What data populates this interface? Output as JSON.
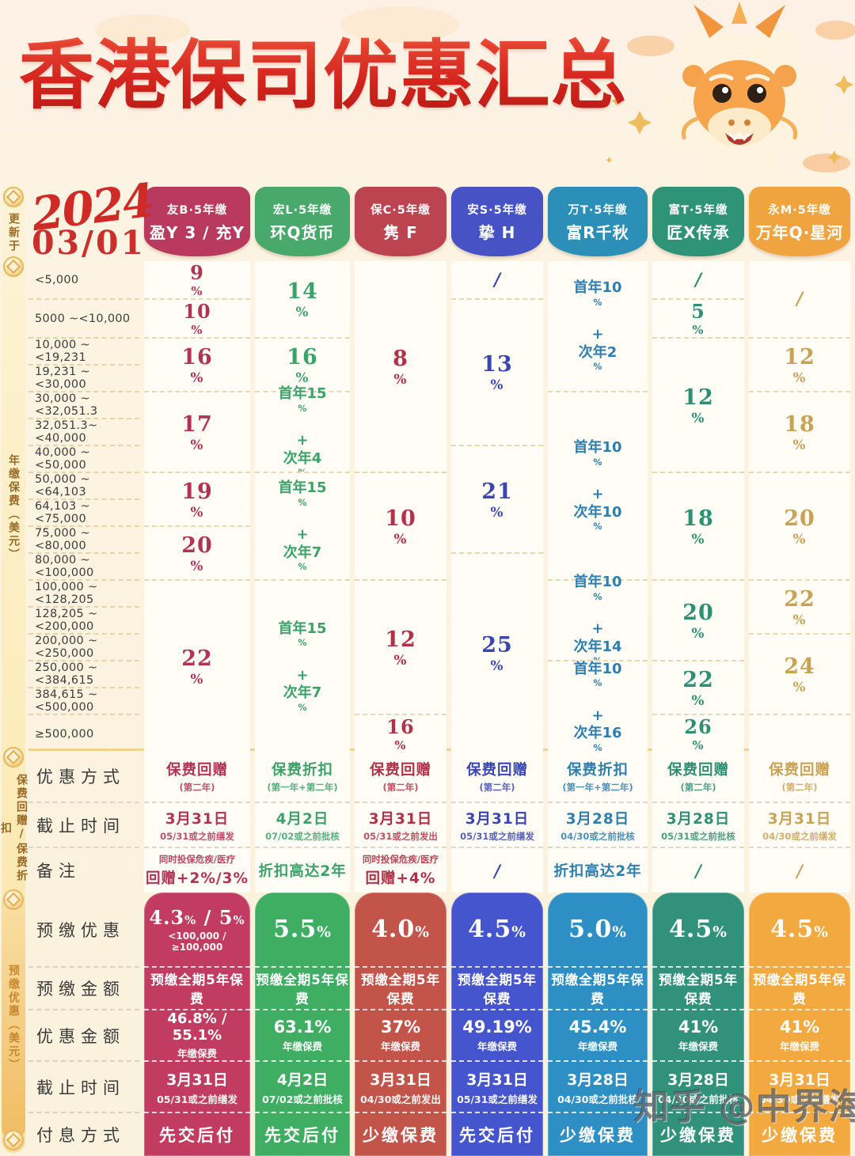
{
  "title": "香港保司优惠汇总",
  "update": {
    "label": "更新于",
    "year": "2024",
    "date": "03/01"
  },
  "watermark": "知乎 @中界海外",
  "sidebar": {
    "update": "更新于",
    "section1": "年缴保费（美元）",
    "section2": "保费回赠/保费折扣",
    "section3": "预缴优惠（美元）"
  },
  "row_labels": {
    "method": "优惠方式",
    "deadline": "截止时间",
    "note": "备注",
    "prepay_rate": "预缴优惠",
    "prepay_amount": "预缴金额",
    "prepay_benefit": "优惠金额",
    "prepay_deadline": "截止时间",
    "prepay_interest": "付息方式"
  },
  "chart_data": {
    "type": "table",
    "title": "香港保司优惠汇总",
    "updated": "2024 03/01",
    "unit_note": "年缴保费（美元）",
    "premium_bands": [
      "<5,000",
      "5000  ~<10,000",
      "10,000  ~<19,231",
      "19,231  ~<30,000",
      "30,000  ~<32,051.3",
      "32,051.3~<40,000",
      "40,000  ~<50,000",
      "50,000  ~<64,103",
      "64,103  ~<75,000",
      "75,000  ~<80,000",
      "80,000  ~<100,000",
      "100,000 ~<128,205",
      "128,205 ~<200,000",
      "200,000 ~<250,000",
      "250,000 ~<384,615",
      "384,615 ~<500,000",
      "≥500,000"
    ],
    "columns": [
      {
        "company": "友B·5年缴",
        "product": "盈Y 3 / 充Y",
        "header_color": "#b93a5e",
        "value_color": "#b23355",
        "card_color": "#c23b60",
        "cells": [
          {
            "span": 1,
            "text": "9%"
          },
          {
            "span": 1,
            "text": "10%"
          },
          {
            "span": 2,
            "text": "16%"
          },
          {
            "span": 3,
            "text": "17%"
          },
          {
            "span": 2,
            "text": "19%"
          },
          {
            "span": 2,
            "text": "20%"
          },
          {
            "span": 6,
            "text": "22%"
          }
        ],
        "method": {
          "main": "保费回赠",
          "sub": "(第二年)"
        },
        "deadline": {
          "main": "3月31日",
          "sub": "05/31或之前缮发"
        },
        "note": {
          "top": "同时投保危疾/医疗",
          "main": "回赠+2%/3%"
        },
        "prepay": {
          "rate": "4.3% / 5%",
          "rate_sub": "<100,000 / ≥100,000",
          "amount": "预缴全期5年保费",
          "benefit": "46.8% / 55.1%",
          "benefit_sub": "年缴保费",
          "deadline": "3月31日",
          "deadline_sub": "05/31或之前缮发",
          "interest": "先交后付"
        }
      },
      {
        "company": "宏L·5年缴",
        "product": "环Q货币",
        "header_color": "#49a86b",
        "value_color": "#3ba269",
        "card_color": "#3fae63",
        "cells": [
          {
            "span": 2,
            "text": "14%"
          },
          {
            "span": 2,
            "text": "16%"
          },
          {
            "span": 3,
            "text": "首年15%\n+\n次年4%"
          },
          {
            "span": 4,
            "text": "首年15%\n+\n次年7%"
          },
          {
            "span": 6,
            "text": "首年15%\n+\n次年7%"
          }
        ],
        "method": {
          "main": "保费折扣",
          "sub": "(第一年+第二年)"
        },
        "deadline": {
          "main": "4月2日",
          "sub": "07/02或之前批核"
        },
        "note": {
          "main": "折扣高达2年"
        },
        "prepay": {
          "rate": "5.5%",
          "amount": "预缴全期5年保费",
          "benefit": "63.1%",
          "benefit_sub": "年缴保费",
          "deadline": "4月2日",
          "deadline_sub": "07/02或之前批核",
          "interest": "先交后付"
        }
      },
      {
        "company": "保C·5年缴",
        "product": "隽 F",
        "header_color": "#bc4450",
        "value_color": "#b33148",
        "card_color": "#c3544a",
        "cells": [
          {
            "span": 7,
            "text": "8%"
          },
          {
            "span": 4,
            "text": "10%"
          },
          {
            "span": 5,
            "text": "12%"
          },
          {
            "span": 1,
            "text": "16%"
          }
        ],
        "method": {
          "main": "保费回赠",
          "sub": "(第二年)"
        },
        "deadline": {
          "main": "3月31日",
          "sub": "05/31或之前发出"
        },
        "note": {
          "top": "同时投保危疾/医疗",
          "main": "回赠+4%"
        },
        "prepay": {
          "rate": "4.0%",
          "amount": "预缴全期5年保费",
          "benefit": "37%",
          "benefit_sub": "年缴保费",
          "deadline": "3月31日",
          "deadline_sub": "04/30或之前发出",
          "interest": "少缴保费"
        }
      },
      {
        "company": "安S·5年缴",
        "product": "挚 H",
        "header_color": "#4753c4",
        "value_color": "#3a46b4",
        "card_color": "#4555cd",
        "cells": [
          {
            "span": 1,
            "text": "/"
          },
          {
            "span": 5,
            "text": "13%"
          },
          {
            "span": 4,
            "text": "21%"
          },
          {
            "span": 7,
            "text": "25%"
          }
        ],
        "method": {
          "main": "保费回赠",
          "sub": "(第二年)"
        },
        "deadline": {
          "main": "3月31日",
          "sub": "05/31或之前缮发"
        },
        "note": {
          "main": "/"
        },
        "prepay": {
          "rate": "4.5%",
          "amount": "预缴全期5年保费",
          "benefit": "49.19%",
          "benefit_sub": "年缴保费",
          "deadline": "3月31日",
          "deadline_sub": "05/31或之前缮发",
          "interest": "先交后付"
        }
      },
      {
        "company": "万T·5年缴",
        "product": "富R千秋",
        "header_color": "#2b8fb8",
        "value_color": "#2c7fb0",
        "card_color": "#2e8fc4",
        "cells": [
          {
            "span": 4,
            "text": "首年10%\n+\n次年2%"
          },
          {
            "span": 7,
            "text": "首年10%\n+\n次年10%"
          },
          {
            "span": 3,
            "text": "首年10%\n+\n次年14%"
          },
          {
            "span": 3,
            "text": "首年10%\n+\n次年16%"
          }
        ],
        "method": {
          "main": "保费折扣",
          "sub": "(第一年+第二年)"
        },
        "deadline": {
          "main": "3月28日",
          "sub": "04/30或之前批核"
        },
        "note": {
          "main": "折扣高达2年"
        },
        "prepay": {
          "rate": "5.0%",
          "amount": "预缴全期5年保费",
          "benefit": "45.4%",
          "benefit_sub": "年缴保费",
          "deadline": "3月28日",
          "deadline_sub": "04/30或之前批核",
          "interest": "少缴保费"
        }
      },
      {
        "company": "富T·5年缴",
        "product": "匠X传承",
        "header_color": "#2e9377",
        "value_color": "#2e8f72",
        "card_color": "#31917a",
        "cells": [
          {
            "span": 1,
            "text": "/"
          },
          {
            "span": 1,
            "text": "5%"
          },
          {
            "span": 5,
            "text": "12%"
          },
          {
            "span": 4,
            "text": "18%"
          },
          {
            "span": 3,
            "text": "20%"
          },
          {
            "span": 2,
            "text": "22%"
          },
          {
            "span": 1,
            "text": "26%"
          }
        ],
        "method": {
          "main": "保费回赠",
          "sub": "(第二年)"
        },
        "deadline": {
          "main": "3月28日",
          "sub": "05/31或之前批核"
        },
        "note": {
          "main": "/"
        },
        "prepay": {
          "rate": "4.5%",
          "amount": "预缴全期5年保费",
          "benefit": "41%",
          "benefit_sub": "年缴保费",
          "deadline": "3月28日",
          "deadline_sub": "04/30或之前批核",
          "interest": "少缴保费"
        }
      },
      {
        "company": "永M·5年缴",
        "product": "万年Q·星河",
        "header_color": "#efa440",
        "value_color": "#c9a254",
        "card_color": "#f2a93f",
        "cells": [
          {
            "span": 2,
            "text": "/"
          },
          {
            "span": 2,
            "text": "12%"
          },
          {
            "span": 3,
            "text": "18%"
          },
          {
            "span": 4,
            "text": "20%"
          },
          {
            "span": 2,
            "text": "22%"
          },
          {
            "span": 3,
            "text": "24%"
          },
          {
            "span": 1,
            "text": ""
          }
        ],
        "method": {
          "main": "保费回赠",
          "sub": "(第二年)"
        },
        "deadline": {
          "main": "3月31日",
          "sub": "04/30或之前缮发"
        },
        "note": {
          "main": "/"
        },
        "prepay": {
          "rate": "4.5%",
          "amount": "预缴全期5年保费",
          "benefit": "41%",
          "benefit_sub": "年缴保费",
          "deadline": "3月31日",
          "deadline_sub": "04/30或之前缮发",
          "interest": "少缴保费"
        }
      }
    ]
  }
}
